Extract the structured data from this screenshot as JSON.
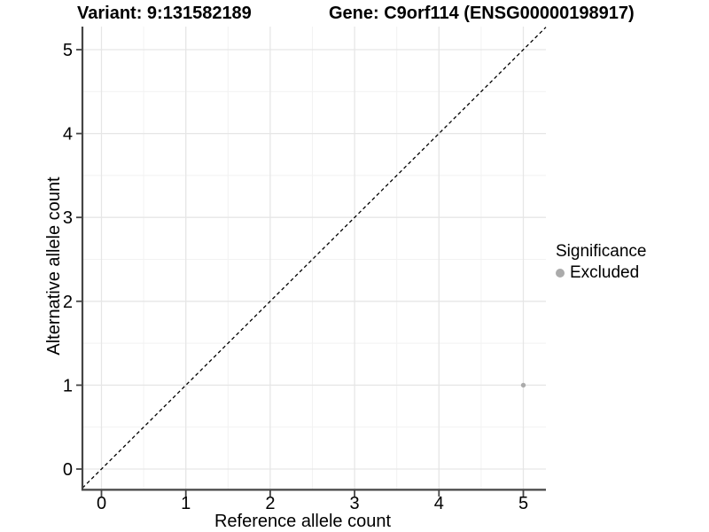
{
  "chart_data": {
    "type": "scatter",
    "title_left": "Variant: 9:131582189",
    "title_right": "Gene: C9orf114 (ENSG00000198917)",
    "xlabel": "Reference allele count",
    "ylabel": "Alternative allele count",
    "xlim": [
      -0.25,
      5.3
    ],
    "ylim": [
      -0.25,
      5.3
    ],
    "xticks": [
      0,
      1,
      2,
      3,
      4,
      5
    ],
    "yticks": [
      0,
      1,
      2,
      3,
      4,
      5
    ],
    "x_minor_gridlines": [
      0.5,
      1.5,
      2.5,
      3.5,
      4.5
    ],
    "y_minor_gridlines": [
      0.5,
      1.5,
      2.5,
      3.5,
      4.5
    ],
    "grid": "major and minor gridlines, light gray on white background",
    "identity_line": {
      "style": "dashed",
      "equation": "y = x",
      "color": "#000000"
    },
    "series": [
      {
        "name": "Excluded",
        "color": "#ababab",
        "points": [
          {
            "x": 5,
            "y": 1
          }
        ]
      }
    ],
    "legend": {
      "title": "Significance",
      "position": "right",
      "items": [
        {
          "label": "Excluded",
          "color": "#ababab"
        }
      ]
    },
    "colors": {
      "grid_major": "#e6e6e6",
      "grid_minor": "#f2f2f2",
      "axis_line": "#454545",
      "tick_mark": "#454545",
      "text": "#000000",
      "point": "#ababab"
    }
  }
}
